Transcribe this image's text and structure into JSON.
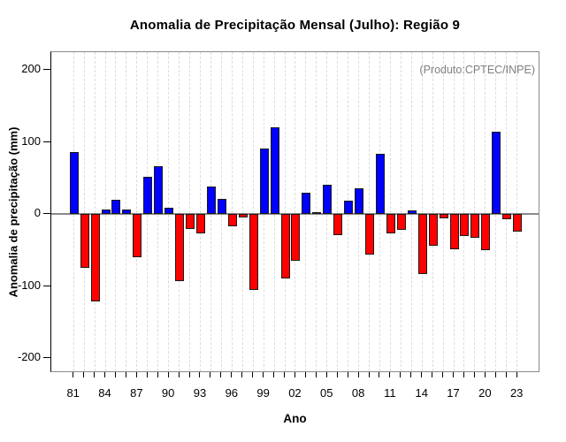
{
  "title": "Anomalia de Precipitação Mensal (Julho): Região 9",
  "annotation": "(Produto:CPTEC/INPE)",
  "chart_data": {
    "type": "bar",
    "title": "Anomalia de Precipitação Mensal (Julho): Região 9",
    "xlabel": "Ano",
    "ylabel": "Anomalia de precipitação (mm)",
    "annotation": "(Produto:CPTEC/INPE)",
    "ylim": [
      -221,
      224
    ],
    "y_ticks": [
      "200",
      "100",
      "0",
      "-100",
      "-200"
    ],
    "x_tick_labels": [
      "81",
      "84",
      "87",
      "90",
      "93",
      "96",
      "99",
      "02",
      "05",
      "08",
      "11",
      "14",
      "17",
      "20",
      "23"
    ],
    "grid": "vertical-dashed-per-year",
    "legend": "none",
    "positive_color": "#0000ff",
    "negative_color": "#ff0000",
    "categories": [
      "81",
      "82",
      "83",
      "84",
      "85",
      "86",
      "87",
      "88",
      "89",
      "90",
      "91",
      "92",
      "93",
      "94",
      "95",
      "96",
      "97",
      "98",
      "99",
      "00",
      "01",
      "02",
      "03",
      "04",
      "05",
      "06",
      "07",
      "08",
      "09",
      "10",
      "11",
      "12",
      "13",
      "14",
      "15",
      "16",
      "17",
      "18",
      "19",
      "20",
      "21",
      "22",
      "23"
    ],
    "values": [
      86,
      -75,
      -121,
      6,
      20,
      6,
      -60,
      51,
      66,
      8,
      -93,
      -21,
      -27,
      38,
      21,
      -17,
      -5,
      -105,
      91,
      120,
      -89,
      -65,
      30,
      3,
      41,
      -29,
      19,
      35,
      -56,
      84,
      -27,
      -22,
      5,
      -83,
      -44,
      -6,
      -49,
      -31,
      -33,
      -50,
      114,
      -7,
      -24
    ]
  }
}
